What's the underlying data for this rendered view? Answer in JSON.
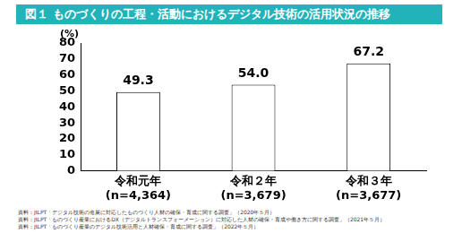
{
  "chart_data": {
    "type": "bar",
    "title": "図１ ものづくりの工程・活動におけるデジタル技術の活用状況の推移",
    "ylabel": "(%)",
    "categories": [
      [
        "令和元年",
        "(n=4,364)"
      ],
      [
        "令和２年",
        "(n=3,679)"
      ],
      [
        "令和３年",
        "(n=3,677)"
      ]
    ],
    "values": [
      49.3,
      54.0,
      67.2
    ],
    "value_labels": [
      "49.3",
      "54.0",
      "67.2"
    ],
    "data_labels": true,
    "color": "#ffffff",
    "ylim": [
      0,
      80
    ],
    "yticks": [
      0,
      10,
      20,
      30,
      40,
      50,
      60,
      70,
      80
    ],
    "grid": false,
    "sources": [
      "資料：JILPT「デジタル技術の進展に対応したものづくり人材の確保・育成に関する調査」（2020年５月）",
      "資料：JILPT「ものづくり産業におけるDX（デジタルトランスフォーメーション）に対応した人材の確保・育成や働き方に関する調査」（2021年５月）",
      "資料：JILPT「ものづくり産業のデジタル技術活用と人材確保・育成に関する調査」（2022年５月）"
    ]
  }
}
